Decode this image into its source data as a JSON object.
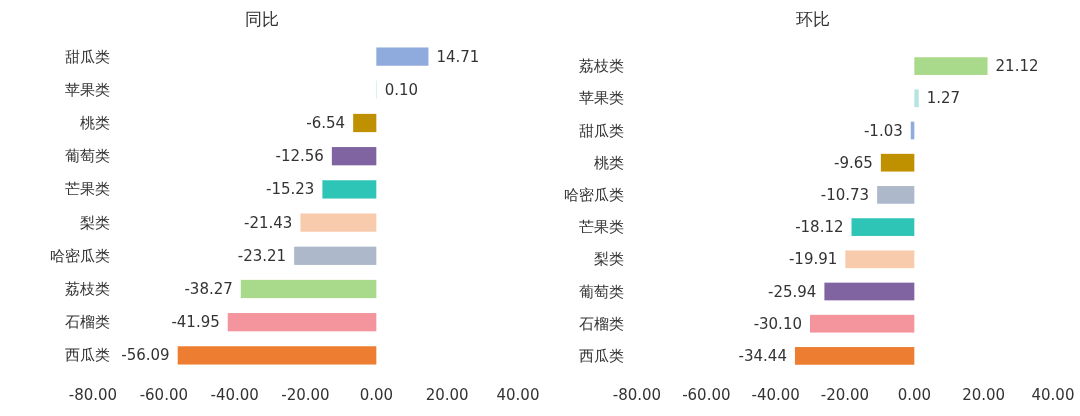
{
  "chart_data": [
    {
      "type": "bar",
      "orientation": "horizontal",
      "title": "同比",
      "categories": [
        "甜瓜类",
        "苹果类",
        "桃类",
        "葡萄类",
        "芒果类",
        "梨类",
        "哈密瓜类",
        "荔枝类",
        "石榴类",
        "西瓜类"
      ],
      "values": [
        14.71,
        0.1,
        -6.54,
        -12.56,
        -15.23,
        -21.43,
        -23.21,
        -38.27,
        -41.95,
        -56.09
      ],
      "value_labels": [
        "14.71",
        "0.10",
        "-6.54",
        "-12.56",
        "-15.23",
        "-21.43",
        "-23.21",
        "-38.27",
        "-41.95",
        "-56.09"
      ],
      "colors": [
        "#8faadc",
        "#b4e5e0",
        "#bf9000",
        "#8064a2",
        "#2ec4b6",
        "#f8cbad",
        "#adb9ca",
        "#a9d98b",
        "#f4949c",
        "#ed7d31"
      ],
      "xlim": [
        -80,
        40
      ],
      "xticks": [
        {
          "value": -80,
          "label": "-80.00"
        },
        {
          "value": -60,
          "label": "-60.00"
        },
        {
          "value": -40,
          "label": "-40.00"
        },
        {
          "value": -20,
          "label": "-20.00"
        },
        {
          "value": 0,
          "label": "0.00"
        },
        {
          "value": 20,
          "label": "20.00"
        },
        {
          "value": 40,
          "label": "40.00"
        }
      ]
    },
    {
      "type": "bar",
      "orientation": "horizontal",
      "title": "环比",
      "categories": [
        "荔枝类",
        "苹果类",
        "甜瓜类",
        "桃类",
        "哈密瓜类",
        "芒果类",
        "梨类",
        "葡萄类",
        "石榴类",
        "西瓜类"
      ],
      "values": [
        21.12,
        1.27,
        -1.03,
        -9.65,
        -10.73,
        -18.12,
        -19.91,
        -25.94,
        -30.1,
        -34.44
      ],
      "value_labels": [
        "21.12",
        "1.27",
        "-1.03",
        "-9.65",
        "-10.73",
        "-18.12",
        "-19.91",
        "-25.94",
        "-30.10",
        "-34.44"
      ],
      "colors": [
        "#a9d98b",
        "#b4e5e0",
        "#8faadc",
        "#bf9000",
        "#adb9ca",
        "#2ec4b6",
        "#f8cbad",
        "#8064a2",
        "#f4949c",
        "#ed7d31"
      ],
      "xlim": [
        -80,
        40
      ],
      "xticks": [
        {
          "value": -80,
          "label": "-80.00"
        },
        {
          "value": -60,
          "label": "-60.00"
        },
        {
          "value": -40,
          "label": "-40.00"
        },
        {
          "value": -20,
          "label": "-20.00"
        },
        {
          "value": 0,
          "label": "0.00"
        },
        {
          "value": 20,
          "label": "20.00"
        },
        {
          "value": 40,
          "label": "40.00"
        }
      ]
    }
  ]
}
